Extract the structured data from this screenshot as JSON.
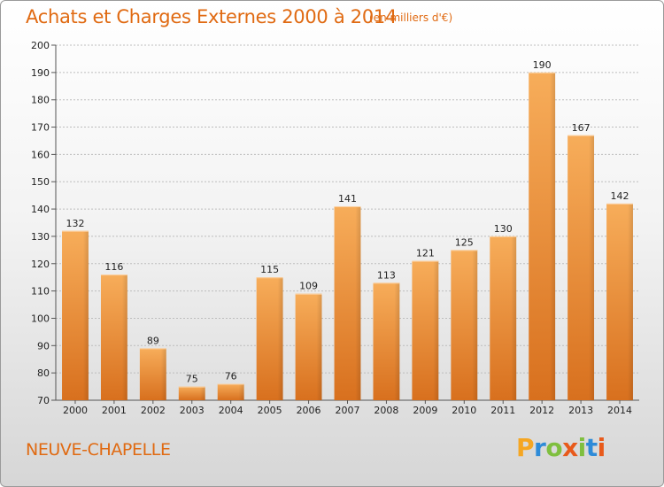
{
  "header": {
    "title": "Achats et Charges Externes 2000 à 2014",
    "subtitle": "(en milliers d'€)"
  },
  "footer": {
    "commune": "NEUVE-CHAPELLE",
    "logo": "Proxiti",
    "logo_colors": [
      "#f5a623",
      "#2e8bd8",
      "#7fbf3f",
      "#e85a1b",
      "#7fbf3f",
      "#2e8bd8",
      "#e85a1b"
    ]
  },
  "colors": {
    "accent": "#e06a12",
    "bar_light": "#f6aa55",
    "bar_dark": "#d8701e",
    "grid": "#bdbdbd"
  },
  "chart_data": {
    "type": "bar",
    "title": "Achats et Charges Externes 2000 à 2014",
    "subtitle": "(en milliers d'€)",
    "categories": [
      "2000",
      "2001",
      "2002",
      "2003",
      "2004",
      "2005",
      "2006",
      "2007",
      "2008",
      "2009",
      "2010",
      "2011",
      "2012",
      "2013",
      "2014"
    ],
    "values": [
      132,
      116,
      89,
      75,
      76,
      115,
      109,
      141,
      113,
      121,
      125,
      130,
      190,
      167,
      142
    ],
    "ylim": [
      70,
      200
    ],
    "yticks": [
      70,
      80,
      90,
      100,
      110,
      120,
      130,
      140,
      150,
      160,
      170,
      180,
      190,
      200
    ],
    "grid": true,
    "data_labels": true,
    "xlabel": "",
    "ylabel": ""
  }
}
